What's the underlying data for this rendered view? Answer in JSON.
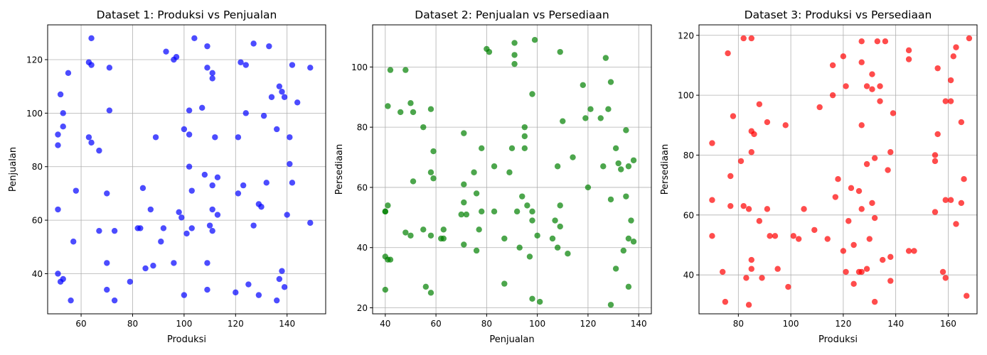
{
  "chart_data": [
    {
      "type": "scatter",
      "title": "Dataset 1: Produksi vs Penjualan",
      "xlabel": "Produksi",
      "ylabel": "Penjualan",
      "xlim": [
        47,
        155
      ],
      "ylim": [
        25,
        133
      ],
      "xticks": [
        60,
        80,
        100,
        120,
        140
      ],
      "yticks": [
        40,
        60,
        80,
        100,
        120
      ],
      "grid": true,
      "color": "#0000ff",
      "points": [
        [
          51,
          40
        ],
        [
          51,
          64
        ],
        [
          51,
          88
        ],
        [
          51,
          92
        ],
        [
          52,
          37
        ],
        [
          52,
          107
        ],
        [
          53,
          38
        ],
        [
          53,
          95
        ],
        [
          53,
          100
        ],
        [
          55,
          115
        ],
        [
          56,
          30
        ],
        [
          57,
          52
        ],
        [
          58,
          71
        ],
        [
          63,
          91
        ],
        [
          63,
          119
        ],
        [
          64,
          128
        ],
        [
          64,
          89
        ],
        [
          64,
          118
        ],
        [
          67,
          56
        ],
        [
          67,
          86
        ],
        [
          70,
          44
        ],
        [
          70,
          70
        ],
        [
          70,
          34
        ],
        [
          71,
          101
        ],
        [
          71,
          117
        ],
        [
          73,
          30
        ],
        [
          73,
          56
        ],
        [
          79,
          37
        ],
        [
          82,
          57
        ],
        [
          83,
          57
        ],
        [
          84,
          72
        ],
        [
          85,
          42
        ],
        [
          87,
          64
        ],
        [
          88,
          43
        ],
        [
          89,
          91
        ],
        [
          91,
          52
        ],
        [
          92,
          57
        ],
        [
          93,
          123
        ],
        [
          96,
          120
        ],
        [
          96,
          44
        ],
        [
          97,
          121
        ],
        [
          98,
          63
        ],
        [
          99,
          61
        ],
        [
          100,
          94
        ],
        [
          100,
          32
        ],
        [
          101,
          55
        ],
        [
          102,
          101
        ],
        [
          102,
          92
        ],
        [
          102,
          80
        ],
        [
          103,
          57
        ],
        [
          103,
          71
        ],
        [
          104,
          128
        ],
        [
          107,
          102
        ],
        [
          108,
          77
        ],
        [
          109,
          125
        ],
        [
          109,
          117
        ],
        [
          109,
          44
        ],
        [
          109,
          34
        ],
        [
          110,
          58
        ],
        [
          111,
          115
        ],
        [
          111,
          113
        ],
        [
          111,
          73
        ],
        [
          111,
          64
        ],
        [
          111,
          56
        ],
        [
          112,
          91
        ],
        [
          113,
          62
        ],
        [
          113,
          76
        ],
        [
          120,
          33
        ],
        [
          121,
          70
        ],
        [
          121,
          91
        ],
        [
          122,
          119
        ],
        [
          123,
          73
        ],
        [
          124,
          118
        ],
        [
          124,
          100
        ],
        [
          125,
          36
        ],
        [
          127,
          126
        ],
        [
          127,
          58
        ],
        [
          129,
          66
        ],
        [
          129,
          32
        ],
        [
          130,
          65
        ],
        [
          131,
          99
        ],
        [
          132,
          74
        ],
        [
          133,
          125
        ],
        [
          134,
          106
        ],
        [
          136,
          94
        ],
        [
          136,
          30
        ],
        [
          137,
          38
        ],
        [
          137,
          110
        ],
        [
          138,
          108
        ],
        [
          138,
          41
        ],
        [
          139,
          106
        ],
        [
          139,
          35
        ],
        [
          140,
          62
        ],
        [
          141,
          91
        ],
        [
          141,
          81
        ],
        [
          142,
          118
        ],
        [
          142,
          74
        ],
        [
          144,
          104
        ],
        [
          149,
          117
        ],
        [
          149,
          59
        ]
      ]
    },
    {
      "type": "scatter",
      "title": "Dataset 2: Penjualan vs Persediaan",
      "xlabel": "Penjualan",
      "ylabel": "Persediaan",
      "xlim": [
        35,
        145
      ],
      "ylim": [
        18,
        114
      ],
      "xticks": [
        40,
        60,
        80,
        100,
        120,
        140
      ],
      "yticks": [
        20,
        40,
        60,
        80,
        100
      ],
      "grid": true,
      "color": "#008000",
      "points": [
        [
          40,
          26
        ],
        [
          40,
          37
        ],
        [
          40,
          52
        ],
        [
          40,
          52
        ],
        [
          41,
          54
        ],
        [
          41,
          87
        ],
        [
          41,
          36
        ],
        [
          42,
          36
        ],
        [
          42,
          99
        ],
        [
          46,
          85
        ],
        [
          48,
          99
        ],
        [
          48,
          45
        ],
        [
          50,
          88
        ],
        [
          50,
          44
        ],
        [
          51,
          85
        ],
        [
          51,
          62
        ],
        [
          55,
          80
        ],
        [
          55,
          46
        ],
        [
          56,
          27
        ],
        [
          58,
          86
        ],
        [
          58,
          65
        ],
        [
          58,
          44
        ],
        [
          58,
          25
        ],
        [
          59,
          63
        ],
        [
          59,
          72
        ],
        [
          62,
          43
        ],
        [
          63,
          43
        ],
        [
          63,
          46
        ],
        [
          70,
          51
        ],
        [
          71,
          78
        ],
        [
          71,
          61
        ],
        [
          71,
          55
        ],
        [
          71,
          41
        ],
        [
          72,
          51
        ],
        [
          75,
          65
        ],
        [
          76,
          58
        ],
        [
          76,
          39
        ],
        [
          77,
          46
        ],
        [
          78,
          73
        ],
        [
          78,
          52
        ],
        [
          80,
          106
        ],
        [
          81,
          105
        ],
        [
          83,
          67
        ],
        [
          83,
          52
        ],
        [
          87,
          43
        ],
        [
          87,
          28
        ],
        [
          89,
          65
        ],
        [
          90,
          73
        ],
        [
          91,
          108
        ],
        [
          91,
          104
        ],
        [
          91,
          101
        ],
        [
          92,
          52
        ],
        [
          93,
          40
        ],
        [
          94,
          57
        ],
        [
          95,
          80
        ],
        [
          95,
          77
        ],
        [
          95,
          73
        ],
        [
          96,
          54
        ],
        [
          97,
          37
        ],
        [
          98,
          91
        ],
        [
          98,
          52
        ],
        [
          98,
          49
        ],
        [
          98,
          23
        ],
        [
          99,
          109
        ],
        [
          100,
          44
        ],
        [
          101,
          22
        ],
        [
          106,
          43
        ],
        [
          107,
          49
        ],
        [
          108,
          67
        ],
        [
          108,
          40
        ],
        [
          109,
          105
        ],
        [
          109,
          54
        ],
        [
          109,
          47
        ],
        [
          110,
          82
        ],
        [
          112,
          38
        ],
        [
          114,
          70
        ],
        [
          118,
          94
        ],
        [
          119,
          83
        ],
        [
          120,
          60
        ],
        [
          121,
          86
        ],
        [
          125,
          83
        ],
        [
          126,
          67
        ],
        [
          127,
          103
        ],
        [
          128,
          86
        ],
        [
          129,
          95
        ],
        [
          129,
          56
        ],
        [
          129,
          21
        ],
        [
          131,
          33
        ],
        [
          131,
          73
        ],
        [
          132,
          68
        ],
        [
          133,
          66
        ],
        [
          134,
          39
        ],
        [
          135,
          79
        ],
        [
          135,
          57
        ],
        [
          136,
          67
        ],
        [
          136,
          43
        ],
        [
          136,
          27
        ],
        [
          137,
          49
        ],
        [
          138,
          69
        ],
        [
          138,
          42
        ]
      ]
    },
    {
      "type": "scatter",
      "title": "Dataset 3: Produksi vs Persediaan",
      "xlabel": "Produksi",
      "ylabel": "Persediaan",
      "xlim": [
        65,
        171
      ],
      "ylim": [
        27,
        123.5
      ],
      "xticks": [
        80,
        100,
        120,
        140,
        160
      ],
      "yticks": [
        40,
        60,
        80,
        100,
        120
      ],
      "grid": true,
      "color": "#ff0000",
      "points": [
        [
          70,
          84
        ],
        [
          70,
          65
        ],
        [
          70,
          53
        ],
        [
          74,
          41
        ],
        [
          75,
          31
        ],
        [
          76,
          114
        ],
        [
          77,
          73
        ],
        [
          77,
          63
        ],
        [
          78,
          93
        ],
        [
          81,
          78
        ],
        [
          82,
          119
        ],
        [
          82,
          63
        ],
        [
          83,
          39
        ],
        [
          84,
          30
        ],
        [
          84,
          62
        ],
        [
          85,
          119
        ],
        [
          85,
          88
        ],
        [
          85,
          81
        ],
        [
          85,
          45
        ],
        [
          85,
          42
        ],
        [
          86,
          87
        ],
        [
          88,
          97
        ],
        [
          88,
          58
        ],
        [
          89,
          39
        ],
        [
          91,
          91
        ],
        [
          91,
          62
        ],
        [
          92,
          53
        ],
        [
          94,
          53
        ],
        [
          95,
          42
        ],
        [
          98,
          90
        ],
        [
          99,
          36
        ],
        [
          101,
          53
        ],
        [
          103,
          52
        ],
        [
          105,
          62
        ],
        [
          109,
          55
        ],
        [
          111,
          96
        ],
        [
          114,
          52
        ],
        [
          116,
          110
        ],
        [
          116,
          100
        ],
        [
          117,
          66
        ],
        [
          118,
          72
        ],
        [
          120,
          113
        ],
        [
          120,
          48
        ],
        [
          121,
          103
        ],
        [
          121,
          41
        ],
        [
          122,
          58
        ],
        [
          123,
          69
        ],
        [
          124,
          37
        ],
        [
          124,
          50
        ],
        [
          126,
          68
        ],
        [
          126,
          41
        ],
        [
          127,
          118
        ],
        [
          127,
          111
        ],
        [
          127,
          90
        ],
        [
          127,
          62
        ],
        [
          127,
          41
        ],
        [
          129,
          103
        ],
        [
          129,
          77
        ],
        [
          129,
          42
        ],
        [
          130,
          52
        ],
        [
          131,
          107
        ],
        [
          131,
          102
        ],
        [
          131,
          64
        ],
        [
          132,
          79
        ],
        [
          132,
          59
        ],
        [
          132,
          31
        ],
        [
          133,
          118
        ],
        [
          134,
          103
        ],
        [
          134,
          98
        ],
        [
          135,
          45
        ],
        [
          136,
          118
        ],
        [
          137,
          75
        ],
        [
          138,
          81
        ],
        [
          138,
          46
        ],
        [
          138,
          38
        ],
        [
          139,
          94
        ],
        [
          145,
          115
        ],
        [
          145,
          112
        ],
        [
          145,
          48
        ],
        [
          147,
          48
        ],
        [
          155,
          80
        ],
        [
          155,
          78
        ],
        [
          155,
          61
        ],
        [
          156,
          109
        ],
        [
          156,
          87
        ],
        [
          158,
          41
        ],
        [
          159,
          98
        ],
        [
          159,
          65
        ],
        [
          159,
          39
        ],
        [
          161,
          98
        ],
        [
          161,
          105
        ],
        [
          161,
          65
        ],
        [
          162,
          113
        ],
        [
          163,
          116
        ],
        [
          163,
          57
        ],
        [
          165,
          91
        ],
        [
          165,
          64
        ],
        [
          166,
          72
        ],
        [
          167,
          33
        ],
        [
          168,
          119
        ]
      ]
    }
  ]
}
